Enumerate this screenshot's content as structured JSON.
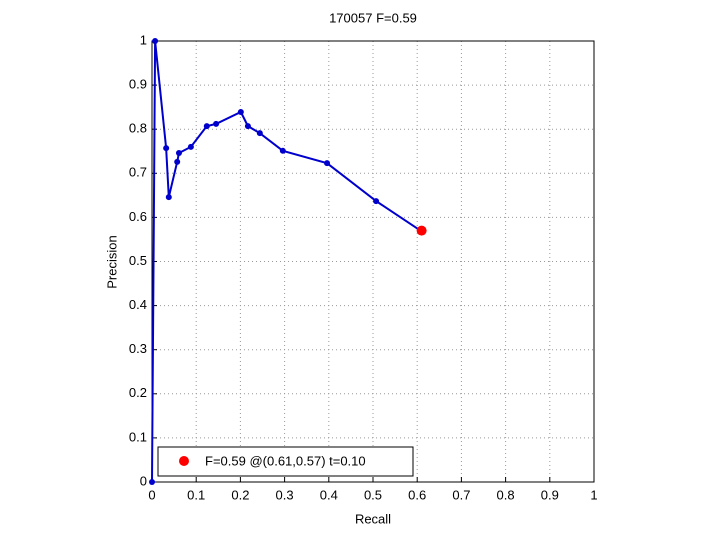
{
  "chart_data": {
    "type": "line",
    "title": "170057 F=0.59",
    "x_label": "Recall",
    "y_label": "Precision",
    "series": [
      {
        "color": "#0000cc",
        "x": [
          0,
          0.007,
          0.032,
          0.038,
          0.057,
          0.061,
          0.088,
          0.124,
          0.145,
          0.201,
          0.217,
          0.244,
          0.296,
          0.396,
          0.507,
          0.609
        ],
        "values": [
          0,
          1,
          0.757,
          0.646,
          0.726,
          0.746,
          0.76,
          0.807,
          0.812,
          0.839,
          0.807,
          0.791,
          0.751,
          0.723,
          0.637,
          0.569
        ],
        "line": true
      },
      {
        "name": "F=0.59 @(0.61,0.57) t=0.10",
        "color": "#ff0000",
        "x": [
          0.61
        ],
        "values": [
          0.57
        ],
        "line": false
      }
    ],
    "xlim": [
      0,
      1
    ],
    "ylim": [
      0,
      1
    ],
    "xticks": [
      0,
      0.1,
      0.2,
      0.3,
      0.4,
      0.5,
      0.6,
      0.7,
      0.8,
      0.9,
      1
    ],
    "yticks": [
      0,
      0.1,
      0.2,
      0.3,
      0.4,
      0.5,
      0.6,
      0.7,
      0.8,
      0.9,
      1
    ],
    "grid": true,
    "legend": "lower left"
  }
}
